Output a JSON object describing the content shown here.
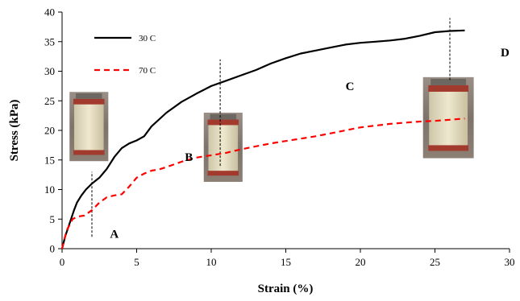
{
  "chart_data": {
    "type": "line",
    "xlabel": "Strain (%)",
    "ylabel": "Stress (kPa)",
    "xlim": [
      0,
      30
    ],
    "ylim": [
      0,
      40
    ],
    "xticks": [
      "0",
      "5",
      "10",
      "15",
      "20",
      "25",
      "30"
    ],
    "yticks": [
      "0",
      "5",
      "10",
      "15",
      "20",
      "25",
      "30",
      "35",
      "40"
    ],
    "grid": false,
    "legend_placement": "top-left",
    "series": [
      {
        "name": "30 C",
        "color": "#000000",
        "style": "solid",
        "points": [
          [
            0,
            0
          ],
          [
            0.2,
            2
          ],
          [
            0.4,
            3.5
          ],
          [
            0.6,
            5
          ],
          [
            0.8,
            6.5
          ],
          [
            1,
            7.8
          ],
          [
            1.3,
            9
          ],
          [
            1.6,
            10
          ],
          [
            2,
            11
          ],
          [
            2.5,
            12
          ],
          [
            3,
            13.5
          ],
          [
            3.5,
            15.5
          ],
          [
            4,
            17
          ],
          [
            4.5,
            17.8
          ],
          [
            5,
            18.3
          ],
          [
            5.5,
            19
          ],
          [
            6,
            20.7
          ],
          [
            7,
            23
          ],
          [
            8,
            24.8
          ],
          [
            9,
            26.2
          ],
          [
            10,
            27.5
          ],
          [
            11,
            28.4
          ],
          [
            12,
            29.3
          ],
          [
            13,
            30.2
          ],
          [
            14,
            31.3
          ],
          [
            15,
            32.2
          ],
          [
            16,
            33
          ],
          [
            17,
            33.5
          ],
          [
            18,
            34
          ],
          [
            19,
            34.5
          ],
          [
            20,
            34.8
          ],
          [
            21,
            35
          ],
          [
            22,
            35.2
          ],
          [
            23,
            35.5
          ],
          [
            24,
            36
          ],
          [
            25,
            36.6
          ],
          [
            26,
            36.8
          ],
          [
            27,
            36.9
          ]
        ]
      },
      {
        "name": "70 C",
        "color": "#ff0000",
        "style": "dashed",
        "points": [
          [
            0,
            0
          ],
          [
            0.3,
            3
          ],
          [
            0.7,
            5
          ],
          [
            1,
            5.4
          ],
          [
            1.5,
            5.6
          ],
          [
            2,
            6.5
          ],
          [
            2.5,
            7.8
          ],
          [
            3,
            8.7
          ],
          [
            3.5,
            9
          ],
          [
            4,
            9.2
          ],
          [
            4.5,
            10.5
          ],
          [
            5,
            12
          ],
          [
            5.5,
            12.7
          ],
          [
            6,
            13.2
          ],
          [
            6.5,
            13.4
          ],
          [
            7,
            13.8
          ],
          [
            8,
            14.7
          ],
          [
            9,
            15.4
          ],
          [
            10,
            15.8
          ],
          [
            11,
            16.2
          ],
          [
            12,
            16.8
          ],
          [
            13,
            17.3
          ],
          [
            14,
            17.8
          ],
          [
            15,
            18.2
          ],
          [
            16,
            18.6
          ],
          [
            17,
            19
          ],
          [
            18,
            19.5
          ],
          [
            19,
            20
          ],
          [
            20,
            20.5
          ],
          [
            21,
            20.8
          ],
          [
            22,
            21.1
          ],
          [
            23,
            21.3
          ],
          [
            24,
            21.5
          ],
          [
            25,
            21.6
          ],
          [
            26,
            21.8
          ],
          [
            27,
            22
          ]
        ]
      }
    ],
    "annotations": [
      {
        "label": "A",
        "x": 3.5,
        "y": 2.5
      },
      {
        "label": "B",
        "x": 8.5,
        "y": 15.5
      },
      {
        "label": "C",
        "x": 19.3,
        "y": 27.5
      },
      {
        "label": "D",
        "x": 29.7,
        "y": 33.2
      }
    ],
    "markers": [
      {
        "x": 2,
        "y_from": 2,
        "y_to": 13
      },
      {
        "x": 10.6,
        "y_from": 14,
        "y_to": 32
      },
      {
        "x": 26,
        "y_from": 28.5,
        "y_to": 39
      }
    ],
    "photos": [
      {
        "x": 0.5,
        "y_top": 26.5,
        "width_data": 2.6,
        "height_data": 11.7
      },
      {
        "x": 9.5,
        "y_top": 23,
        "width_data": 2.6,
        "height_data": 11.7
      },
      {
        "x": 24.2,
        "y_top": 29,
        "width_data": 3.4,
        "height_data": 13.7
      }
    ]
  }
}
